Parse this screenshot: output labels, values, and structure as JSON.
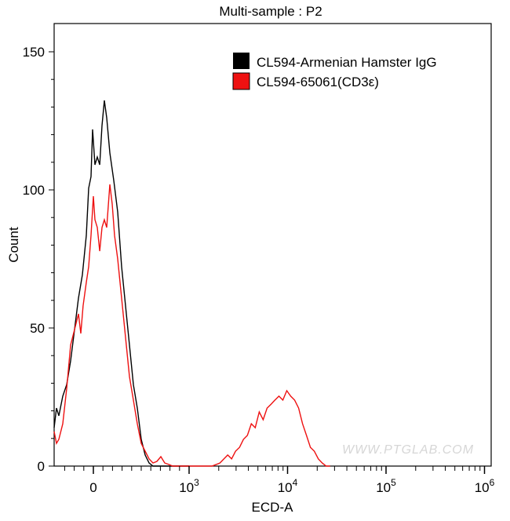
{
  "chart_data": {
    "type": "line",
    "title": "Multi-sample : P2",
    "xlabel": "ECD-A",
    "ylabel": "Count",
    "x_scale": "biexponential",
    "xlim": [
      -410,
      1000000
    ],
    "ylim": [
      0,
      160
    ],
    "x_ticks": [
      {
        "value": 0,
        "base": "0",
        "exp": ""
      },
      {
        "value": 1000,
        "base": "10",
        "exp": "3"
      },
      {
        "value": 10000,
        "base": "10",
        "exp": "4"
      },
      {
        "value": 100000,
        "base": "10",
        "exp": "5"
      },
      {
        "value": 1000000,
        "base": "10",
        "exp": "6"
      }
    ],
    "y_ticks": [
      0,
      50,
      100,
      150
    ],
    "grid": false,
    "legend_position": "top-right",
    "watermark": "WWW.PTGLAB.COM",
    "series": [
      {
        "name": "CL594-Armenian Hamster IgG",
        "color": "#000000",
        "x": [
          -410,
          -385,
          -361,
          -320,
          -279,
          -238,
          -197,
          -156,
          -115,
          -74,
          -49,
          -25,
          -8,
          16,
          41,
          66,
          90,
          115,
          139,
          172,
          213,
          254,
          295,
          336,
          377,
          418,
          459,
          500,
          541,
          582,
          623,
          664,
          1000
        ],
        "y": [
          13.9,
          21,
          18.2,
          25.3,
          29.5,
          38.1,
          49.4,
          60.8,
          69.3,
          83.5,
          100.6,
          104.8,
          121.9,
          109.1,
          111.9,
          109.1,
          123.3,
          132.4,
          126.1,
          113.4,
          103.4,
          92,
          72.2,
          58,
          43.8,
          29.5,
          21,
          9.7,
          4,
          1.1,
          0,
          0,
          0
        ]
      },
      {
        "name": "CL594-65061(CD3ε)",
        "color": "#ee1111",
        "x": [
          -410,
          -385,
          -361,
          -320,
          -279,
          -238,
          -197,
          -156,
          -131,
          -107,
          -74,
          -49,
          -25,
          0,
          16,
          41,
          66,
          90,
          115,
          139,
          172,
          197,
          221,
          254,
          295,
          336,
          377,
          418,
          459,
          500,
          541,
          582,
          623,
          664,
          705,
          746,
          787,
          828,
          1710,
          2051,
          2466,
          2704,
          2965,
          3251,
          3565,
          3908,
          4285,
          4699,
          5152,
          5649,
          6194,
          6792,
          7447,
          8166,
          8954,
          9817,
          10765,
          11803,
          12942,
          14191,
          15560,
          17061,
          18707,
          20512,
          22491,
          24660,
          27040
        ],
        "y": [
          12.5,
          8.2,
          9.7,
          15.3,
          28.1,
          43.8,
          49.4,
          55.1,
          48,
          58,
          66.5,
          72.2,
          83.5,
          97.7,
          89.2,
          86.4,
          77.8,
          86.4,
          89.2,
          86.4,
          102,
          94.9,
          83.5,
          75,
          60.8,
          46.6,
          32.4,
          23.9,
          15.3,
          8.2,
          5.4,
          2.6,
          1.1,
          1.7,
          3.4,
          1.1,
          0.6,
          0,
          0,
          1.1,
          4,
          2.6,
          5.4,
          6.8,
          9.7,
          11.1,
          15.3,
          13.9,
          19.6,
          16.8,
          21,
          22.4,
          23.9,
          25.3,
          23.9,
          27.3,
          25.3,
          23.9,
          21,
          15.3,
          11.1,
          6.8,
          5.4,
          2.6,
          1.1,
          0,
          0
        ]
      }
    ]
  }
}
